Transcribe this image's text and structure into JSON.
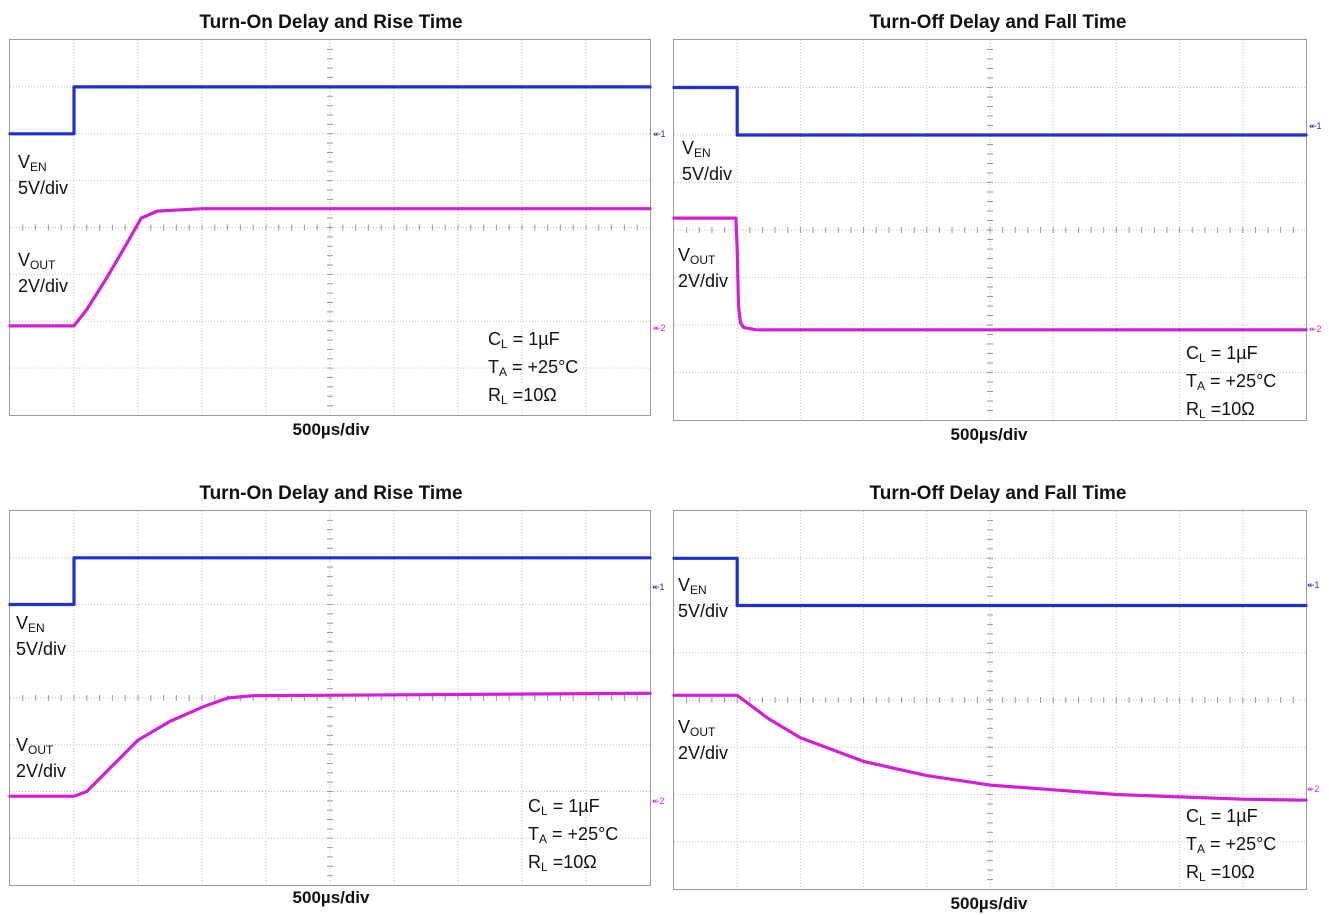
{
  "colors": {
    "ven": "#1f2fd0",
    "vout": "#d21fd6",
    "grid": "#c4c4c4",
    "border": "#9a9a9a"
  },
  "labels": {
    "ven_base": "V",
    "ven_sub": "EN",
    "ven_scale": "5V/div",
    "vout_base": "V",
    "vout_sub": "OUT",
    "vout_scale": "2V/div",
    "cl": "= 1µF",
    "ta": "= +25°C",
    "rl": "=10Ω",
    "c": "C",
    "l": "L",
    "t": "T",
    "a": "A",
    "r": "R"
  },
  "marker_ch1": "1",
  "marker_ch2": "2",
  "chart_data": [
    {
      "type": "line",
      "title": "Turn-On Delay and Rise Time",
      "xlabel": "500µs/div",
      "grid": true,
      "x_divisions": 10,
      "y_divisions": 8,
      "series": [
        {
          "name": "VEN",
          "points": [
            [
              0,
              6.0
            ],
            [
              1,
              6.0
            ],
            [
              1,
              7.0
            ],
            [
              10,
              7.0
            ]
          ]
        },
        {
          "name": "VOUT",
          "points": [
            [
              0,
              1.9
            ],
            [
              1,
              1.9
            ],
            [
              1.2,
              2.25
            ],
            [
              1.5,
              2.9
            ],
            [
              1.8,
              3.6
            ],
            [
              2.05,
              4.2
            ],
            [
              2.3,
              4.35
            ],
            [
              3,
              4.4
            ],
            [
              10,
              4.4
            ]
          ]
        }
      ]
    },
    {
      "type": "line",
      "title": "Turn-Off Delay and Fall Time",
      "xlabel": "500µs/div",
      "grid": true,
      "x_divisions": 10,
      "y_divisions": 8,
      "series": [
        {
          "name": "VEN",
          "points": [
            [
              0,
              7.0
            ],
            [
              1,
              7.0
            ],
            [
              1,
              6.0
            ],
            [
              10,
              6.0
            ]
          ]
        },
        {
          "name": "VOUT",
          "points": [
            [
              0,
              4.25
            ],
            [
              0.98,
              4.25
            ],
            [
              1.0,
              3.6
            ],
            [
              1.02,
              2.4
            ],
            [
              1.05,
              2.05
            ],
            [
              1.1,
              1.95
            ],
            [
              1.3,
              1.9
            ],
            [
              10,
              1.9
            ]
          ]
        }
      ]
    },
    {
      "type": "line",
      "title": "Turn-On Delay and Rise Time",
      "xlabel": "500µs/div",
      "grid": true,
      "x_divisions": 10,
      "y_divisions": 8,
      "series": [
        {
          "name": "VEN",
          "points": [
            [
              0,
              6.0
            ],
            [
              1,
              6.0
            ],
            [
              1,
              7.0
            ],
            [
              10,
              7.0
            ]
          ]
        },
        {
          "name": "VOUT",
          "points": [
            [
              0,
              1.9
            ],
            [
              1,
              1.9
            ],
            [
              1.2,
              2.0
            ],
            [
              1.6,
              2.55
            ],
            [
              2.0,
              3.1
            ],
            [
              2.5,
              3.5
            ],
            [
              3.0,
              3.8
            ],
            [
              3.4,
              4.0
            ],
            [
              3.8,
              4.05
            ],
            [
              10,
              4.1
            ]
          ]
        }
      ]
    },
    {
      "type": "line",
      "title": "Turn-Off Delay and Fall Time",
      "xlabel": "500µs/div",
      "grid": true,
      "x_divisions": 10,
      "y_divisions": 8,
      "series": [
        {
          "name": "VEN",
          "points": [
            [
              0,
              7.0
            ],
            [
              1,
              7.0
            ],
            [
              1,
              6.0
            ],
            [
              10,
              6.0
            ]
          ]
        },
        {
          "name": "VOUT",
          "points": [
            [
              0,
              4.1
            ],
            [
              1,
              4.1
            ],
            [
              1.5,
              3.6
            ],
            [
              2.0,
              3.2
            ],
            [
              3.0,
              2.7
            ],
            [
              4.0,
              2.4
            ],
            [
              5.0,
              2.2
            ],
            [
              6.0,
              2.1
            ],
            [
              7.0,
              2.0
            ],
            [
              8.0,
              1.95
            ],
            [
              9.0,
              1.9
            ],
            [
              10,
              1.88
            ]
          ]
        }
      ]
    }
  ]
}
